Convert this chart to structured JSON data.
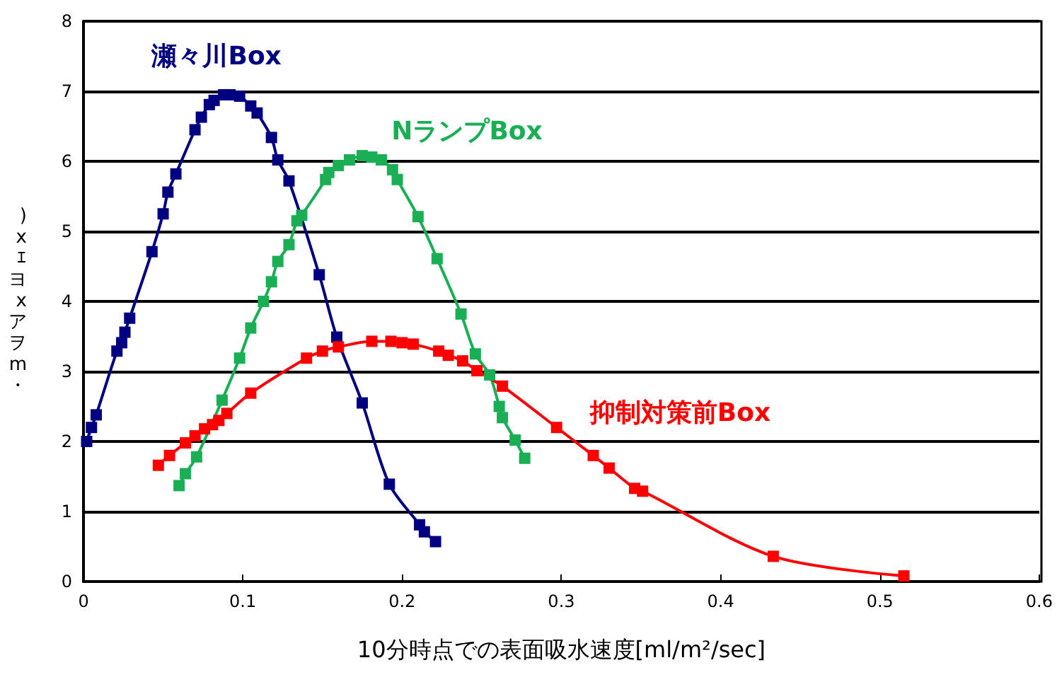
{
  "chart_data": {
    "type": "line",
    "xlabel": "10分時点での表面吸水速度[ml/m²/sec]",
    "ylabel": ")xｴヨxアヲm・",
    "xlim": [
      0,
      0.6
    ],
    "xticks": [
      0,
      0.1,
      0.2,
      0.3,
      0.4,
      0.5,
      0.6
    ],
    "ylim": [
      0,
      8
    ],
    "yticks": [
      0,
      1,
      2,
      3,
      4,
      5,
      6,
      7,
      8
    ],
    "grid": "y",
    "legend": false,
    "marker": "square",
    "line_style": "solid",
    "series": [
      {
        "name": "瀬々川Box",
        "color": "#000080",
        "x": [
          0.002,
          0.005,
          0.008,
          0.021,
          0.024,
          0.026,
          0.029,
          0.043,
          0.05,
          0.053,
          0.058,
          0.07,
          0.074,
          0.079,
          0.082,
          0.088,
          0.092,
          0.098,
          0.105,
          0.109,
          0.118,
          0.122,
          0.129,
          0.148,
          0.159,
          0.175,
          0.192,
          0.211,
          0.214,
          0.221
        ],
        "values": [
          2.0,
          2.2,
          2.38,
          3.29,
          3.41,
          3.56,
          3.76,
          4.71,
          5.25,
          5.56,
          5.82,
          6.45,
          6.63,
          6.81,
          6.87,
          6.95,
          6.95,
          6.93,
          6.79,
          6.69,
          6.34,
          6.02,
          5.72,
          4.38,
          3.49,
          2.55,
          1.39,
          0.81,
          0.71,
          0.57
        ]
      },
      {
        "name": "NランプBox",
        "color": "#1aae55",
        "x": [
          0.06,
          0.064,
          0.071,
          0.087,
          0.098,
          0.105,
          0.113,
          0.118,
          0.122,
          0.129,
          0.134,
          0.137,
          0.152,
          0.154,
          0.16,
          0.167,
          0.175,
          0.181,
          0.187,
          0.194,
          0.197,
          0.21,
          0.222,
          0.237,
          0.246,
          0.255,
          0.261,
          0.263,
          0.271,
          0.277
        ],
        "values": [
          1.37,
          1.54,
          1.78,
          2.59,
          3.19,
          3.62,
          4.0,
          4.28,
          4.57,
          4.81,
          5.15,
          5.23,
          5.74,
          5.84,
          5.94,
          6.02,
          6.08,
          6.06,
          6.02,
          5.88,
          5.74,
          5.21,
          4.61,
          3.82,
          3.25,
          2.95,
          2.5,
          2.34,
          2.02,
          1.76
        ]
      },
      {
        "name": "抑制対策前Box",
        "color": "#ff0000",
        "x": [
          0.047,
          0.054,
          0.064,
          0.07,
          0.076,
          0.081,
          0.085,
          0.09,
          0.105,
          0.14,
          0.15,
          0.16,
          0.181,
          0.193,
          0.2,
          0.207,
          0.223,
          0.229,
          0.238,
          0.247,
          0.263,
          0.297,
          0.32,
          0.33,
          0.346,
          0.351,
          0.433,
          0.515
        ],
        "values": [
          1.66,
          1.8,
          1.98,
          2.08,
          2.18,
          2.24,
          2.3,
          2.4,
          2.69,
          3.19,
          3.29,
          3.35,
          3.43,
          3.43,
          3.41,
          3.39,
          3.29,
          3.23,
          3.15,
          3.01,
          2.79,
          2.2,
          1.8,
          1.62,
          1.33,
          1.29,
          0.36,
          0.08
        ]
      }
    ]
  }
}
